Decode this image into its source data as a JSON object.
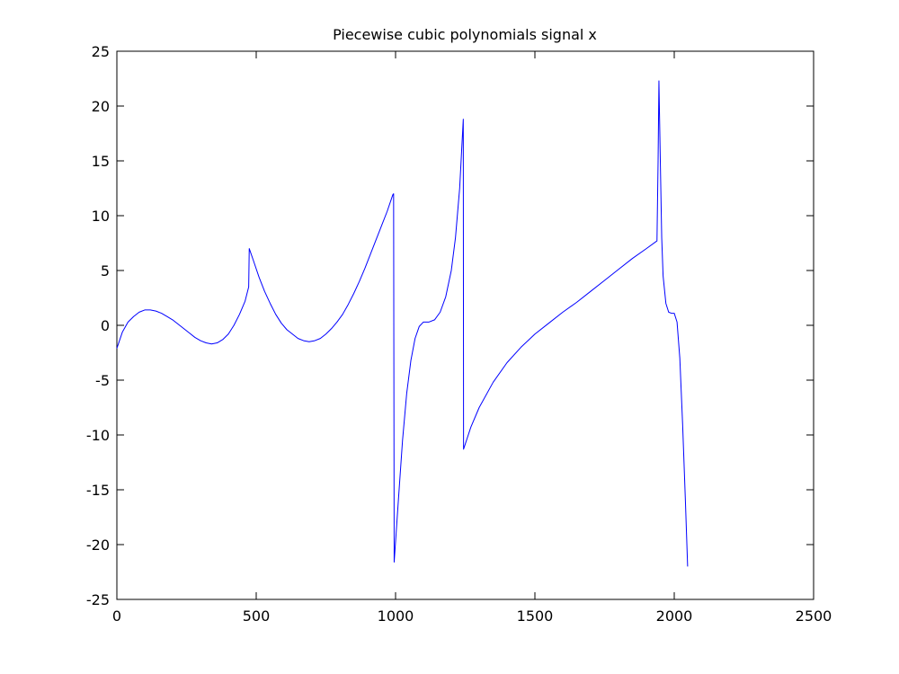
{
  "chart_data": {
    "type": "line",
    "title": "Piecewise cubic polynomials signal x",
    "xlabel": "",
    "ylabel": "",
    "xlim": [
      0,
      2500
    ],
    "ylim": [
      -25,
      25
    ],
    "x_ticks": [
      0,
      500,
      1000,
      1500,
      2000,
      2500
    ],
    "y_ticks": [
      25,
      20,
      15,
      10,
      5,
      0,
      -5,
      -10,
      -15,
      -20,
      -25
    ],
    "grid": false,
    "legend": "none",
    "series": [
      {
        "color": "#0000ff",
        "points": [
          [
            0,
            -2.1
          ],
          [
            20,
            -0.6
          ],
          [
            40,
            0.3
          ],
          [
            60,
            0.8
          ],
          [
            80,
            1.2
          ],
          [
            100,
            1.4
          ],
          [
            120,
            1.4
          ],
          [
            140,
            1.3
          ],
          [
            160,
            1.1
          ],
          [
            180,
            0.8
          ],
          [
            200,
            0.5
          ],
          [
            220,
            0.1
          ],
          [
            240,
            -0.3
          ],
          [
            260,
            -0.7
          ],
          [
            280,
            -1.1
          ],
          [
            300,
            -1.4
          ],
          [
            320,
            -1.6
          ],
          [
            340,
            -1.7
          ],
          [
            360,
            -1.6
          ],
          [
            380,
            -1.3
          ],
          [
            400,
            -0.8
          ],
          [
            420,
            0.0
          ],
          [
            440,
            1.0
          ],
          [
            460,
            2.2
          ],
          [
            473,
            3.5
          ],
          [
            475,
            7.0
          ],
          [
            490,
            5.9
          ],
          [
            510,
            4.4
          ],
          [
            530,
            3.1
          ],
          [
            550,
            2.0
          ],
          [
            570,
            1.0
          ],
          [
            590,
            0.2
          ],
          [
            610,
            -0.4
          ],
          [
            630,
            -0.8
          ],
          [
            650,
            -1.2
          ],
          [
            670,
            -1.4
          ],
          [
            690,
            -1.5
          ],
          [
            710,
            -1.4
          ],
          [
            730,
            -1.2
          ],
          [
            750,
            -0.8
          ],
          [
            770,
            -0.3
          ],
          [
            790,
            0.3
          ],
          [
            810,
            1.0
          ],
          [
            830,
            1.9
          ],
          [
            850,
            2.9
          ],
          [
            870,
            4.0
          ],
          [
            890,
            5.2
          ],
          [
            910,
            6.5
          ],
          [
            930,
            7.8
          ],
          [
            950,
            9.1
          ],
          [
            970,
            10.4
          ],
          [
            990,
            11.9
          ],
          [
            993,
            12.0
          ],
          [
            995,
            -21.6
          ],
          [
            1010,
            -16.0
          ],
          [
            1025,
            -10.5
          ],
          [
            1040,
            -6.2
          ],
          [
            1055,
            -3.2
          ],
          [
            1070,
            -1.2
          ],
          [
            1085,
            -0.1
          ],
          [
            1100,
            0.3
          ],
          [
            1120,
            0.3
          ],
          [
            1140,
            0.5
          ],
          [
            1160,
            1.2
          ],
          [
            1180,
            2.6
          ],
          [
            1200,
            5.0
          ],
          [
            1215,
            8.0
          ],
          [
            1230,
            12.5
          ],
          [
            1243,
            18.8
          ],
          [
            1244,
            -11.3
          ],
          [
            1270,
            -9.3
          ],
          [
            1300,
            -7.5
          ],
          [
            1350,
            -5.2
          ],
          [
            1400,
            -3.4
          ],
          [
            1450,
            -2.0
          ],
          [
            1500,
            -0.8
          ],
          [
            1550,
            0.2
          ],
          [
            1600,
            1.2
          ],
          [
            1650,
            2.1
          ],
          [
            1700,
            3.1
          ],
          [
            1750,
            4.1
          ],
          [
            1800,
            5.1
          ],
          [
            1850,
            6.1
          ],
          [
            1900,
            7.0
          ],
          [
            1938,
            7.7
          ],
          [
            1942,
            15.0
          ],
          [
            1945,
            22.3
          ],
          [
            1950,
            15.0
          ],
          [
            1955,
            8.0
          ],
          [
            1960,
            4.5
          ],
          [
            1970,
            2.0
          ],
          [
            1980,
            1.2
          ],
          [
            1990,
            1.1
          ],
          [
            2000,
            1.1
          ],
          [
            2010,
            0.3
          ],
          [
            2020,
            -3.0
          ],
          [
            2030,
            -9.0
          ],
          [
            2040,
            -16.0
          ],
          [
            2048,
            -22.0
          ]
        ]
      }
    ]
  }
}
